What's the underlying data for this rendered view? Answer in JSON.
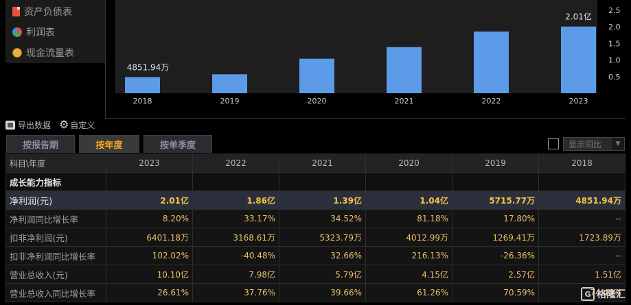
{
  "menu": {
    "items": [
      {
        "label": "资产负债表",
        "icon": "document-icon"
      },
      {
        "label": "利润表",
        "icon": "pie-chart-icon"
      },
      {
        "label": "现金流量表",
        "icon": "coins-icon"
      }
    ]
  },
  "chart_data": {
    "type": "bar",
    "categories": [
      "2018",
      "2019",
      "2020",
      "2021",
      "2022",
      "2023"
    ],
    "values": [
      0.485194,
      0.571577,
      1.04,
      1.39,
      1.86,
      2.01
    ],
    "data_labels": {
      "0": "4851.94万",
      "5": "2.01亿"
    },
    "yticks": [
      "0.5",
      "1.0",
      "1.5",
      "2.0",
      "2.5"
    ],
    "ylim": [
      0,
      2.5
    ],
    "bar_color": "#5b9be8",
    "grid": false
  },
  "toolbar": {
    "export_label": "导出数据",
    "custom_label": "自定义"
  },
  "tabs": [
    {
      "label": "按报告期",
      "active": false
    },
    {
      "label": "按年度",
      "active": true
    },
    {
      "label": "按单季度",
      "active": false
    }
  ],
  "toggle": {
    "label": "显示同比",
    "checked": false
  },
  "table": {
    "header_label": "科目\\年度",
    "years": [
      "2023",
      "2022",
      "2021",
      "2020",
      "2019",
      "2018"
    ],
    "section_label": "成长能力指标",
    "rows": [
      {
        "label": "净利润(元)",
        "values": [
          "2.01亿",
          "1.86亿",
          "1.39亿",
          "1.04亿",
          "5715.77万",
          "4851.94万"
        ],
        "highlight": true
      },
      {
        "label": "净利润同比增长率",
        "values": [
          "8.20%",
          "33.17%",
          "34.52%",
          "81.18%",
          "17.80%",
          "--"
        ]
      },
      {
        "label": "扣非净利润(元)",
        "values": [
          "6401.18万",
          "3168.61万",
          "5323.79万",
          "4012.99万",
          "1269.41万",
          "1723.89万"
        ]
      },
      {
        "label": "扣非净利润同比增长率",
        "values": [
          "102.02%",
          "-40.48%",
          "32.66%",
          "216.13%",
          "-26.36%",
          "--"
        ]
      },
      {
        "label": "营业总收入(元)",
        "values": [
          "10.10亿",
          "7.98亿",
          "5.79亿",
          "4.15亿",
          "2.57亿",
          "1.51亿"
        ]
      },
      {
        "label": "营业总收入同比增长率",
        "values": [
          "26.61%",
          "37.76%",
          "39.66%",
          "61.26%",
          "70.59%",
          "74.48%"
        ]
      }
    ]
  },
  "watermark": {
    "text": "格隆汇"
  }
}
